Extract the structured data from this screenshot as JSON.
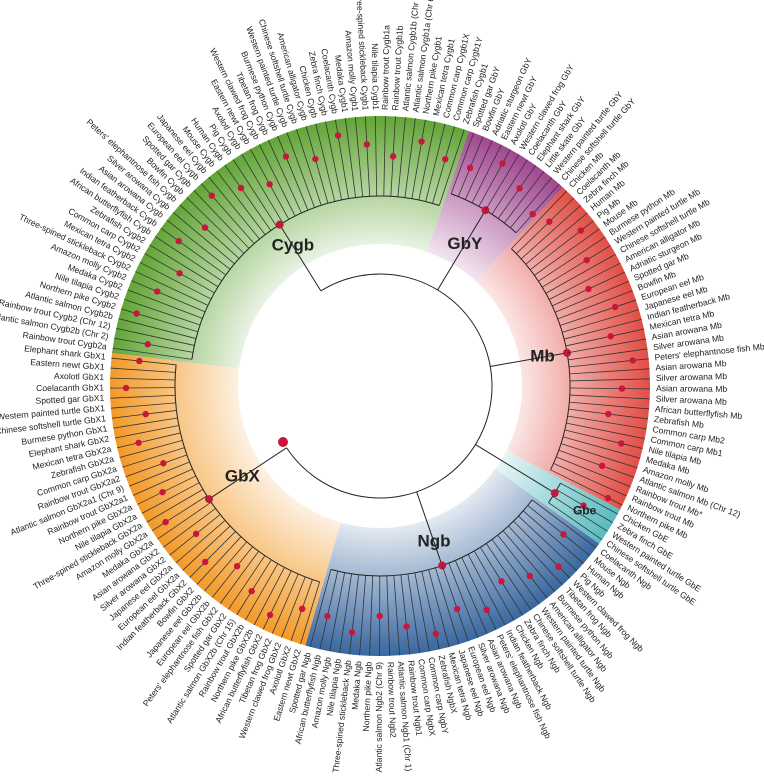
{
  "clades": [
    {
      "name": "Cygb",
      "color": "#5aa02c",
      "leaves": [
        "Rainbow trout Cygb2a",
        "Atlantic salmon Cygb2b (Chr 2)",
        "Rainbow trout Cygb2 (Chr 12)",
        "Atlantic salmon Cygb2b",
        "Northern pike Cygb2",
        "Nile tilapia Cygb2",
        "Medaka Cygb2",
        "Amazon molly Cygb2",
        "Three-spined stickleback Cygb2",
        "Mexican tetra Cygb2",
        "Common carp Cygb2",
        "Zebrafish Cygb2",
        "African butterflyfish Cygb",
        "Indian featherback Cygb",
        "Asian arowana Cygb",
        "Silver arowana Cygb",
        "Peters' elephantnose fish Cygb",
        "Bowfin Cygb",
        "Spotted gar Cygb",
        "European eel Cygb",
        "Japanese eel Cygb",
        "Mouse Cygb",
        "Human Cygb",
        "Pig Cygb",
        "Axolotl Cygb",
        "Eastern newt Cygb",
        "Western clawed frog Cygb",
        "Tibetan frog Cygb",
        "Burmese python Cygb",
        "Western painted turtle Cygb",
        "Chinese softshell turtle Cygb",
        "American alligator Cygb",
        "Chicken Cygb",
        "Zebra finch Cygb",
        "Coelacanth Cygb",
        "Medaka Cygb1",
        "Amazon molly Cygb1",
        "Three-spined stickleback Cygb1",
        "Nile tilapia Cygb1",
        "Rainbow trout Cygb1a",
        "Rainbow trout Cygb1b",
        "Atlantic salmon Cygb1b (Chr 3)",
        "Atlantic salmon Cygb1a (Chr 6)",
        "Northern pike Cygb1",
        "Mexican tetra Cygb1",
        "Common carp Cygb1X",
        "Common carp Cygb1Y",
        "Zebrafish Cygb1"
      ]
    },
    {
      "name": "GbY",
      "color": "#9b3d8a",
      "leaves": [
        "Spotted gar GbY",
        "Bowfin GbY",
        "Adriatic sturgeon GbY",
        "Eastern newt GbY",
        "Axolotl GbY",
        "Western clawed frog GbY",
        "Coelacanth GbY",
        "Elephant shark GbY",
        "Little skate GbY",
        "Western painted turtle GbY",
        "Chinese softshell turtle GbY"
      ]
    },
    {
      "name": "Mb",
      "color": "#e0453c",
      "leaves": [
        "Chicken Mb",
        "Coelacanth Mb",
        "Zebra finch Mb",
        "Human Mb",
        "Pig Mb",
        "Mouse Mb",
        "Burmese python Mb",
        "Western painted turtle Mb",
        "Chinese softshell turtle Mb",
        "American alligator Mb",
        "Adriatic sturgeon Mb",
        "Spotted gar Mb",
        "Bowfin Mb",
        "European eel Mb",
        "Japanese eel Mb",
        "Indian featherback Mb",
        "Mexican tetra Mb",
        "Asian arowana Mb",
        "Silver arowana Mb",
        "Peters' elephantnose fish Mb",
        "Asian arowana Mb",
        "Silver arowana Mb",
        "Asian arowana Mb",
        "Silver arowana Mb",
        "African butterflyfish Mb",
        "Zebrafish Mb",
        "Common carp Mb2",
        "Common carp Mb1",
        "Nile tilapia Mb",
        "Medaka Mb",
        "Amazon molly Mb",
        "Atlantic salmon Mb (Chr 12)",
        "Rainbow trout Mb*",
        "Rainbow trout Mb",
        "Northern pike Mb"
      ]
    },
    {
      "name": "Gbe",
      "color": "#4fb8bd",
      "leaves": [
        "Chicken GbE",
        "Zebra finch GbE",
        "Western painted turtle GbE",
        "Chinese softshell turtle GbE"
      ]
    },
    {
      "name": "Ngb",
      "color": "#2f5f9a",
      "leaves": [
        "Coelacanth Ngb",
        "Mouse Ngb",
        "Human Ngb",
        "Pig Ngb",
        "Western clawed frog Ngb",
        "Tibetan frog Ngb",
        "Burmese python Ngb",
        "American alligator Ngb",
        "Western painted turtle Ngb",
        "Chinese softshell turtle Ngb",
        "Zebra finch Ngb",
        "Chicken Ngb",
        "Indian featherback Ngb",
        "Peters' elephantnose fish Ngb",
        "Asian arowana Ngb",
        "Silver arowana Ngb",
        "European eel Ngb",
        "Japanese eel Ngb",
        "Mexican tetra Ngb",
        "Zebrafish NgbX",
        "Common carp NgbY",
        "Common carp NgbX",
        "Rainbow trout Ngb1",
        "Atlantic salmon Ngb1 (Chr 1)",
        "Rainbow trout Ngb2",
        "Atlantic salmon Ngb2 (Chr 9)",
        "Northern pike Ngb",
        "Medaka Ngb",
        "Three-spined stickleback Ngb",
        "Nile tilapia Ngb",
        "Amazon molly Ngb",
        "African butterflyfish Ngb",
        "Spotted gar Ngb"
      ]
    },
    {
      "name": "GbX",
      "color": "#f2941c",
      "leaves": [
        "Eastern newt GbX2",
        "Axolotl GbX2",
        "Western clawed frog GbX2",
        "Tibetan frog GbX2",
        "African butterflyfish GbX2",
        "Northern pike GbX2b",
        "Rainbow trout GbX2b",
        "Atlantic salmon GbX2b (Chr 15)",
        "Spotted gar GbX2",
        "Peters' elephantnose fish GbX2",
        "European eel GbX2b",
        "Japanese eel GbX2b",
        "Bowfin GbX2",
        "Indian featherback GbX2",
        "European eel GbX2a",
        "Japanese eel GbX2a",
        "Silver arowana GbX2",
        "Asian arowana GbX2",
        "Medaka GbX2a",
        "Amazon molly GbX2a",
        "Three-spined stickleback GbX2a",
        "Nile tilapia GbX2a",
        "Northern pike GbX2a",
        "Rainbow trout GbX2a1",
        "Atlantic salmon GbX2a1 (Chr 9)",
        "Rainbow trout GbX2a2",
        "Common carp GbX2a",
        "Zebrafish GbX2a",
        "Mexican tetra GbX2a",
        "Elephant shark GbX2",
        "Burmese python GbX1",
        "Chinese softshell turtle GbX1",
        "Western painted turtle GbX1",
        "Spotted gar GbX1",
        "Coelacanth GbX1",
        "Axolotl GbX1",
        "Eastern newt GbX1",
        "Elephant shark GbX1"
      ]
    }
  ]
}
